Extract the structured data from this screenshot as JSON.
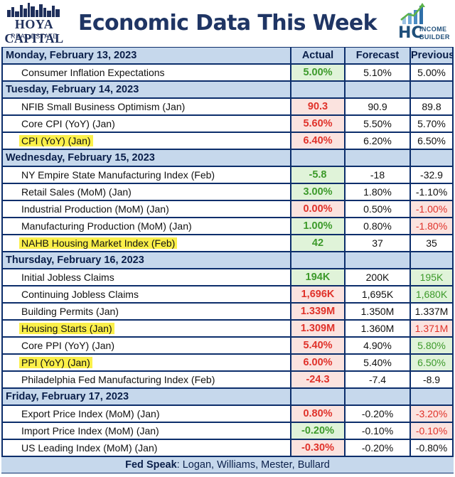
{
  "header": {
    "left_logo_name": "HOYA CAPITAL",
    "left_logo_sub": "REAL ESTATE",
    "title": "Economic Data This Week",
    "right_logo_mark": "HC",
    "right_logo_text_1": "INCOME",
    "right_logo_text_2": "BUILDER",
    "brand_color": "#1f3564"
  },
  "columns": {
    "actual": "Actual",
    "forecast": "Forecast",
    "previous": "Previous"
  },
  "colors": {
    "good": "#3c9a2a",
    "bad": "#e0322a",
    "highlight": "#fbf04a",
    "header_bg": "#c6d8ec",
    "grid": "#0c2e6b"
  },
  "days": [
    {
      "label": "Monday, February 13, 2023",
      "rows": [
        {
          "name": "Consumer Inflation Expectations",
          "actual": "5.00%",
          "forecast": "5.10%",
          "previous": "5.00%",
          "actual_status": "good",
          "previous_status": "neutral",
          "highlight": false
        }
      ]
    },
    {
      "label": "Tuesday, February 14, 2023",
      "rows": [
        {
          "name": "NFIB Small Business Optimism (Jan)",
          "actual": "90.3",
          "forecast": "90.9",
          "previous": "89.8",
          "actual_status": "bad",
          "previous_status": "neutral",
          "highlight": false
        },
        {
          "name": "Core CPI (YoY) (Jan)",
          "actual": "5.60%",
          "forecast": "5.50%",
          "previous": "5.70%",
          "actual_status": "bad",
          "previous_status": "neutral",
          "highlight": false
        },
        {
          "name": "CPI (YoY) (Jan)",
          "actual": "6.40%",
          "forecast": "6.20%",
          "previous": "6.50%",
          "actual_status": "bad",
          "previous_status": "neutral",
          "highlight": true
        }
      ]
    },
    {
      "label": "Wednesday, February 15, 2023",
      "rows": [
        {
          "name": "NY Empire State Manufacturing Index (Feb)",
          "actual": "-5.8",
          "forecast": "-18",
          "previous": "-32.9",
          "actual_status": "good",
          "previous_status": "neutral",
          "highlight": false
        },
        {
          "name": "Retail Sales (MoM) (Jan)",
          "actual": "3.00%",
          "forecast": "1.80%",
          "previous": "-1.10%",
          "actual_status": "good",
          "previous_status": "neutral",
          "highlight": false
        },
        {
          "name": "Industrial Production (MoM) (Jan)",
          "actual": "0.00%",
          "forecast": "0.50%",
          "previous": "-1.00%",
          "actual_status": "bad",
          "previous_status": "bad",
          "highlight": false
        },
        {
          "name": "Manufacturing Production (MoM) (Jan)",
          "actual": "1.00%",
          "forecast": "0.80%",
          "previous": "-1.80%",
          "actual_status": "good",
          "previous_status": "bad",
          "highlight": false
        },
        {
          "name": "NAHB Housing Market Index (Feb)",
          "actual": "42",
          "forecast": "37",
          "previous": "35",
          "actual_status": "good",
          "previous_status": "neutral",
          "highlight": true
        }
      ]
    },
    {
      "label": "Thursday, February 16, 2023",
      "rows": [
        {
          "name": "Initial Jobless Claims",
          "actual": "194K",
          "forecast": "200K",
          "previous": "195K",
          "actual_status": "good",
          "previous_status": "good",
          "highlight": false
        },
        {
          "name": "Continuing Jobless Claims",
          "actual": "1,696K",
          "forecast": "1,695K",
          "previous": "1,680K",
          "actual_status": "bad",
          "previous_status": "good",
          "highlight": false
        },
        {
          "name": "Building Permits (Jan)",
          "actual": "1.339M",
          "forecast": "1.350M",
          "previous": "1.337M",
          "actual_status": "bad",
          "previous_status": "neutral",
          "highlight": false
        },
        {
          "name": "Housing Starts (Jan)",
          "actual": "1.309M",
          "forecast": "1.360M",
          "previous": "1.371M",
          "actual_status": "bad",
          "previous_status": "bad",
          "highlight": true
        },
        {
          "name": "Core PPI (YoY) (Jan)",
          "actual": "5.40%",
          "forecast": "4.90%",
          "previous": "5.80%",
          "actual_status": "bad",
          "previous_status": "good",
          "highlight": false
        },
        {
          "name": "PPI (YoY) (Jan)",
          "actual": "6.00%",
          "forecast": "5.40%",
          "previous": "6.50%",
          "actual_status": "bad",
          "previous_status": "good",
          "highlight": true
        },
        {
          "name": "Philadelphia Fed Manufacturing Index (Feb)",
          "actual": "-24.3",
          "forecast": "-7.4",
          "previous": "-8.9",
          "actual_status": "bad",
          "previous_status": "neutral",
          "highlight": false
        }
      ]
    },
    {
      "label": "Friday, February 17, 2023",
      "rows": [
        {
          "name": "Export Price Index (MoM) (Jan)",
          "actual": "0.80%",
          "forecast": "-0.20%",
          "previous": "-3.20%",
          "actual_status": "bad",
          "previous_status": "bad",
          "highlight": false
        },
        {
          "name": "Import Price Index (MoM) (Jan)",
          "actual": "-0.20%",
          "forecast": "-0.10%",
          "previous": "-0.10%",
          "actual_status": "good",
          "previous_status": "bad",
          "highlight": false
        },
        {
          "name": "US Leading Index (MoM) (Jan)",
          "actual": "-0.30%",
          "forecast": "-0.20%",
          "previous": "-0.80%",
          "actual_status": "bad",
          "previous_status": "neutral",
          "highlight": false
        }
      ]
    }
  ],
  "footer": {
    "label": "Fed Speak",
    "text": ": Logan, Williams, Mester, Bullard"
  }
}
